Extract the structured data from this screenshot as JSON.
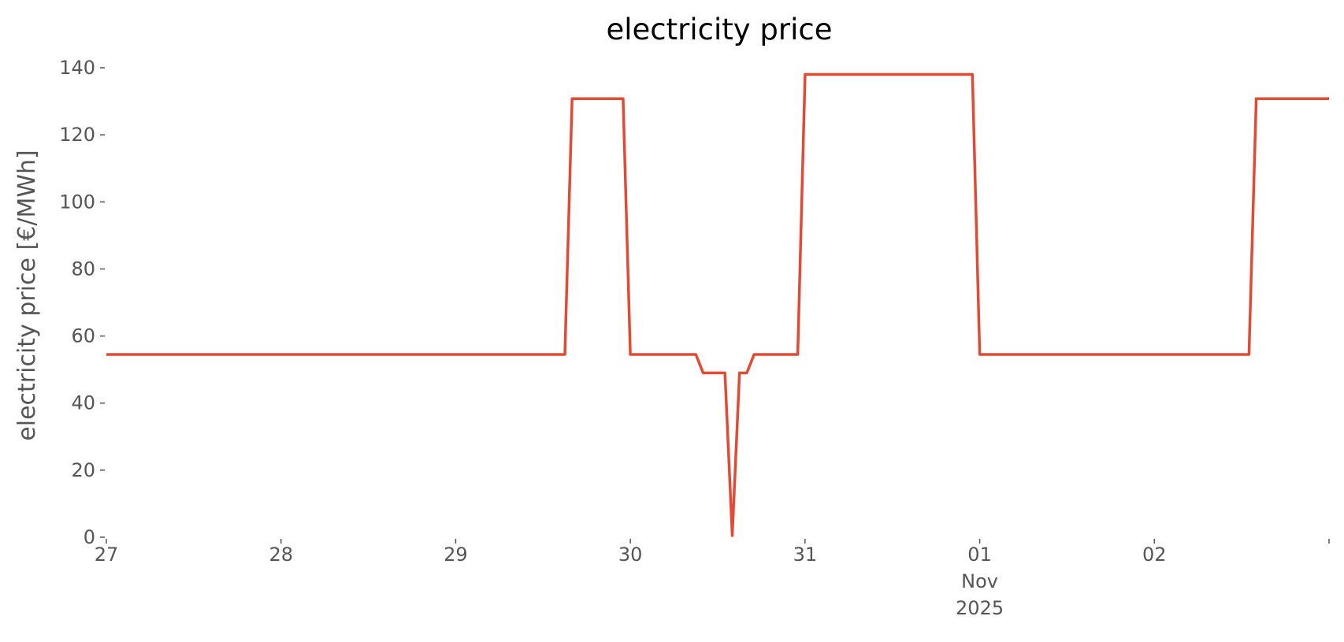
{
  "chart_data": {
    "type": "line",
    "title": "electricity price",
    "xlabel": "",
    "ylabel": "electricity price [€/MWh]",
    "x_axis": {
      "type": "date",
      "range": [
        "2025-10-27T00:00",
        "2025-11-03T00:00"
      ],
      "ticks": [
        {
          "date": "2025-10-27T00:00",
          "lines": [
            "27"
          ]
        },
        {
          "date": "2025-10-28T00:00",
          "lines": [
            "28"
          ]
        },
        {
          "date": "2025-10-29T00:00",
          "lines": [
            "29"
          ]
        },
        {
          "date": "2025-10-30T00:00",
          "lines": [
            "30"
          ]
        },
        {
          "date": "2025-10-31T00:00",
          "lines": [
            "31"
          ]
        },
        {
          "date": "2025-11-01T00:00",
          "lines": [
            "01",
            "Nov",
            "2025"
          ]
        },
        {
          "date": "2025-11-02T00:00",
          "lines": [
            "02"
          ]
        },
        {
          "date": "2025-11-03T00:00",
          "lines": [
            ""
          ]
        }
      ]
    },
    "y_axis": {
      "range": [
        0,
        140
      ],
      "ticks": [
        0,
        20,
        40,
        60,
        80,
        100,
        120,
        140
      ]
    },
    "grid": false,
    "legend": "none",
    "series": [
      {
        "color": "#E24A33",
        "points": [
          {
            "x": "2025-10-27T00:00",
            "y": 54.5
          },
          {
            "x": "2025-10-29T15:00",
            "y": 54.5
          },
          {
            "x": "2025-10-29T16:00",
            "y": 130.8
          },
          {
            "x": "2025-10-29T23:00",
            "y": 130.8
          },
          {
            "x": "2025-10-30T00:00",
            "y": 54.5
          },
          {
            "x": "2025-10-30T09:00",
            "y": 54.5
          },
          {
            "x": "2025-10-30T10:00",
            "y": 49.0
          },
          {
            "x": "2025-10-30T13:00",
            "y": 49.0
          },
          {
            "x": "2025-10-30T14:00",
            "y": 0.5
          },
          {
            "x": "2025-10-30T15:00",
            "y": 49.0
          },
          {
            "x": "2025-10-30T16:00",
            "y": 49.0
          },
          {
            "x": "2025-10-30T17:00",
            "y": 54.5
          },
          {
            "x": "2025-10-30T23:00",
            "y": 54.5
          },
          {
            "x": "2025-10-31T00:00",
            "y": 138.0
          },
          {
            "x": "2025-10-31T23:00",
            "y": 138.0
          },
          {
            "x": "2025-11-01T00:00",
            "y": 54.5
          },
          {
            "x": "2025-11-02T13:00",
            "y": 54.5
          },
          {
            "x": "2025-11-02T14:00",
            "y": 130.8
          },
          {
            "x": "2025-11-03T00:00",
            "y": 130.8
          }
        ]
      }
    ]
  }
}
